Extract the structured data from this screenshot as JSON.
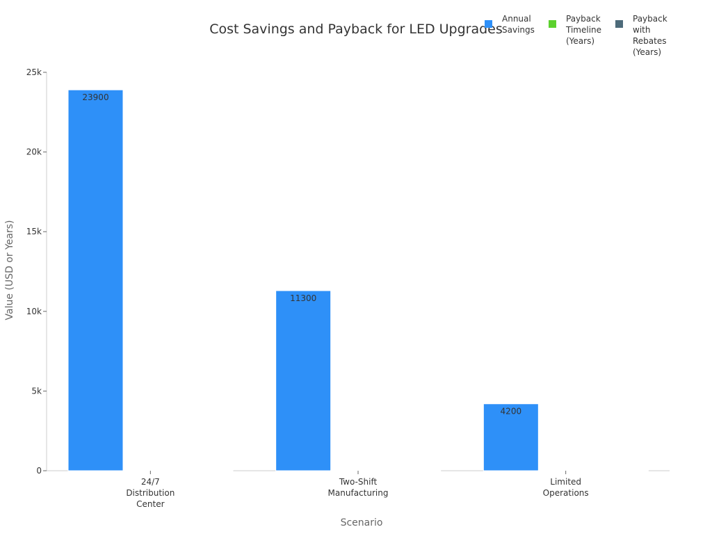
{
  "chart_data": {
    "type": "bar",
    "title": "Cost Savings and Payback for LED Upgrades",
    "xlabel": "Scenario",
    "ylabel": "Value (USD or Years)",
    "categories": [
      [
        "24/7",
        "Distribution",
        "Center"
      ],
      [
        "Two-Shift",
        "Manufacturing"
      ],
      [
        "Limited",
        "Operations"
      ]
    ],
    "series": [
      {
        "name": [
          "Annual",
          "Savings"
        ],
        "values": [
          23900,
          11300,
          4200
        ],
        "color": "#2e90f8",
        "show_labels": true
      },
      {
        "name": [
          "Payback",
          "Timeline",
          "(Years)"
        ],
        "values": [
          0.9,
          1.6,
          3.8
        ],
        "color": "#5cd12e",
        "show_labels": false
      },
      {
        "name": [
          "Payback",
          "with",
          "Rebates",
          "(Years)"
        ],
        "values": [
          0.7,
          1.1,
          2.9
        ],
        "color": "#4d6b7a",
        "show_labels": false
      }
    ],
    "ylim": [
      0,
      25000
    ],
    "yticks": [
      0,
      5000,
      10000,
      15000,
      20000,
      25000
    ],
    "ytick_labels": [
      "0",
      "5k",
      "10k",
      "15k",
      "20k",
      "25k"
    ],
    "grid": false,
    "legend_position": "top-right"
  }
}
